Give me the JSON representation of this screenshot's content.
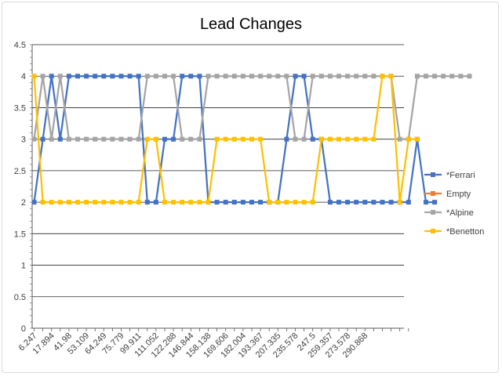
{
  "chart_data": {
    "type": "line",
    "title": "Lead Changes",
    "xlabel": "",
    "ylabel": "",
    "ylim": [
      0,
      4.5
    ],
    "ystep": 0.5,
    "grid": true,
    "legend_position": "right",
    "x_tick_labels": [
      "6.247",
      "17.894",
      "41.98",
      "53.109",
      "64.249",
      "75.779",
      "99.911",
      "111.052",
      "122.288",
      "146.844",
      "158.138",
      "169.606",
      "182.004",
      "193.367",
      "207.335",
      "235.578",
      "247.5",
      "259.357",
      "273.578",
      "290.868"
    ],
    "y_tick_labels": [
      "0",
      "0.5",
      "1",
      "1.5",
      "2",
      "2.5",
      "3",
      "3.5",
      "4",
      "4.5"
    ],
    "series": [
      {
        "name": "*Ferrari",
        "color": "#4472c4",
        "values": [
          2,
          3,
          4,
          3,
          4,
          4,
          4,
          4,
          4,
          4,
          4,
          4,
          4,
          2,
          2,
          3,
          3,
          4,
          4,
          4,
          2,
          2,
          2,
          2,
          2,
          2,
          2,
          2,
          2,
          3,
          4,
          4,
          3,
          3,
          2,
          2,
          2,
          2,
          2,
          2,
          2,
          2,
          2,
          2,
          3,
          2,
          2
        ]
      },
      {
        "name": "Empty",
        "color": "#ed7d31",
        "values": []
      },
      {
        "name": "*Alpine",
        "color": "#a5a5a5",
        "values": [
          3,
          4,
          3,
          4,
          3,
          3,
          3,
          3,
          3,
          3,
          3,
          3,
          3,
          4,
          4,
          4,
          4,
          3,
          3,
          3,
          4,
          4,
          4,
          4,
          4,
          4,
          4,
          4,
          4,
          4,
          3,
          3,
          4,
          4,
          4,
          4,
          4,
          4,
          4,
          4,
          4,
          4,
          3,
          3,
          4,
          4,
          4,
          4,
          4,
          4,
          4
        ]
      },
      {
        "name": "*Benetton",
        "color": "#ffc000",
        "values": [
          4,
          2,
          2,
          2,
          2,
          2,
          2,
          2,
          2,
          2,
          2,
          2,
          2,
          3,
          3,
          2,
          2,
          2,
          2,
          2,
          2,
          3,
          3,
          3,
          3,
          3,
          3,
          2,
          2,
          2,
          2,
          2,
          2,
          3,
          3,
          3,
          3,
          3,
          3,
          3,
          4,
          4,
          2,
          3,
          3
        ]
      }
    ]
  }
}
